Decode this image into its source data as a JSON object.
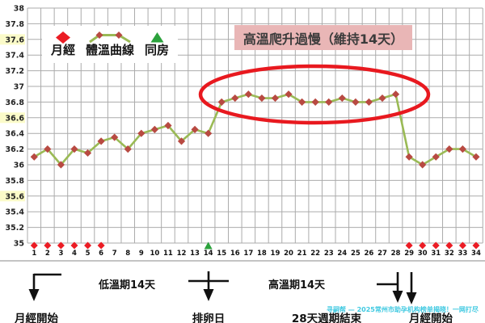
{
  "chart_data": {
    "type": "line",
    "title": "",
    "xlabel": "",
    "ylabel": "",
    "x": [
      1,
      2,
      3,
      4,
      5,
      6,
      7,
      8,
      9,
      10,
      11,
      12,
      13,
      14,
      15,
      16,
      17,
      18,
      19,
      20,
      21,
      22,
      23,
      24,
      25,
      26,
      27,
      28,
      29,
      30,
      31,
      32,
      33,
      34
    ],
    "series": [
      {
        "name": "體溫曲線",
        "values": [
          36.1,
          36.2,
          36.0,
          36.2,
          36.15,
          36.3,
          36.35,
          36.2,
          36.4,
          36.45,
          36.5,
          36.3,
          36.45,
          36.4,
          36.8,
          36.85,
          36.9,
          36.85,
          36.85,
          36.9,
          36.8,
          36.8,
          36.8,
          36.85,
          36.8,
          36.8,
          36.85,
          36.9,
          36.1,
          36.0,
          36.1,
          36.2,
          36.2,
          36.1
        ]
      }
    ],
    "ylim": [
      35,
      38
    ],
    "ytick_step": 0.2,
    "highlighted_yticks": [
      37.6,
      36.6,
      35.6
    ],
    "menses_days": [
      1,
      2,
      3,
      4,
      5,
      6,
      29,
      30,
      31,
      32,
      33,
      34
    ],
    "intercourse_days": [
      14
    ],
    "grid": true,
    "legend_position": "top-left",
    "legend_entries": [
      "月經",
      "體溫曲線",
      "同房"
    ]
  },
  "annotations": {
    "title": "高溫爬升過慢（維持14天）",
    "low_phase": "低溫期14天",
    "high_phase": "高溫期14天",
    "menses_start": "月經開始",
    "ovulation": "排卵日",
    "cycle_end": "28天週期結束",
    "menses_start_2": "月經開始"
  },
  "watermark": "寻嗣帮 — 2025常州市助孕机构榜单揭晓！一网打尽",
  "colors": {
    "line": "#9ABA55",
    "point": "#B84A42",
    "menses_marker": "#EB1C24",
    "intercourse_marker": "#2BA23C",
    "ellipse": "#E8191F",
    "title_bg": "#E9B6B6",
    "grid": "#ABABAB",
    "tick_highlight": "#FBFBC9",
    "separator": "#C4C4C4",
    "arrow": "#111111"
  }
}
